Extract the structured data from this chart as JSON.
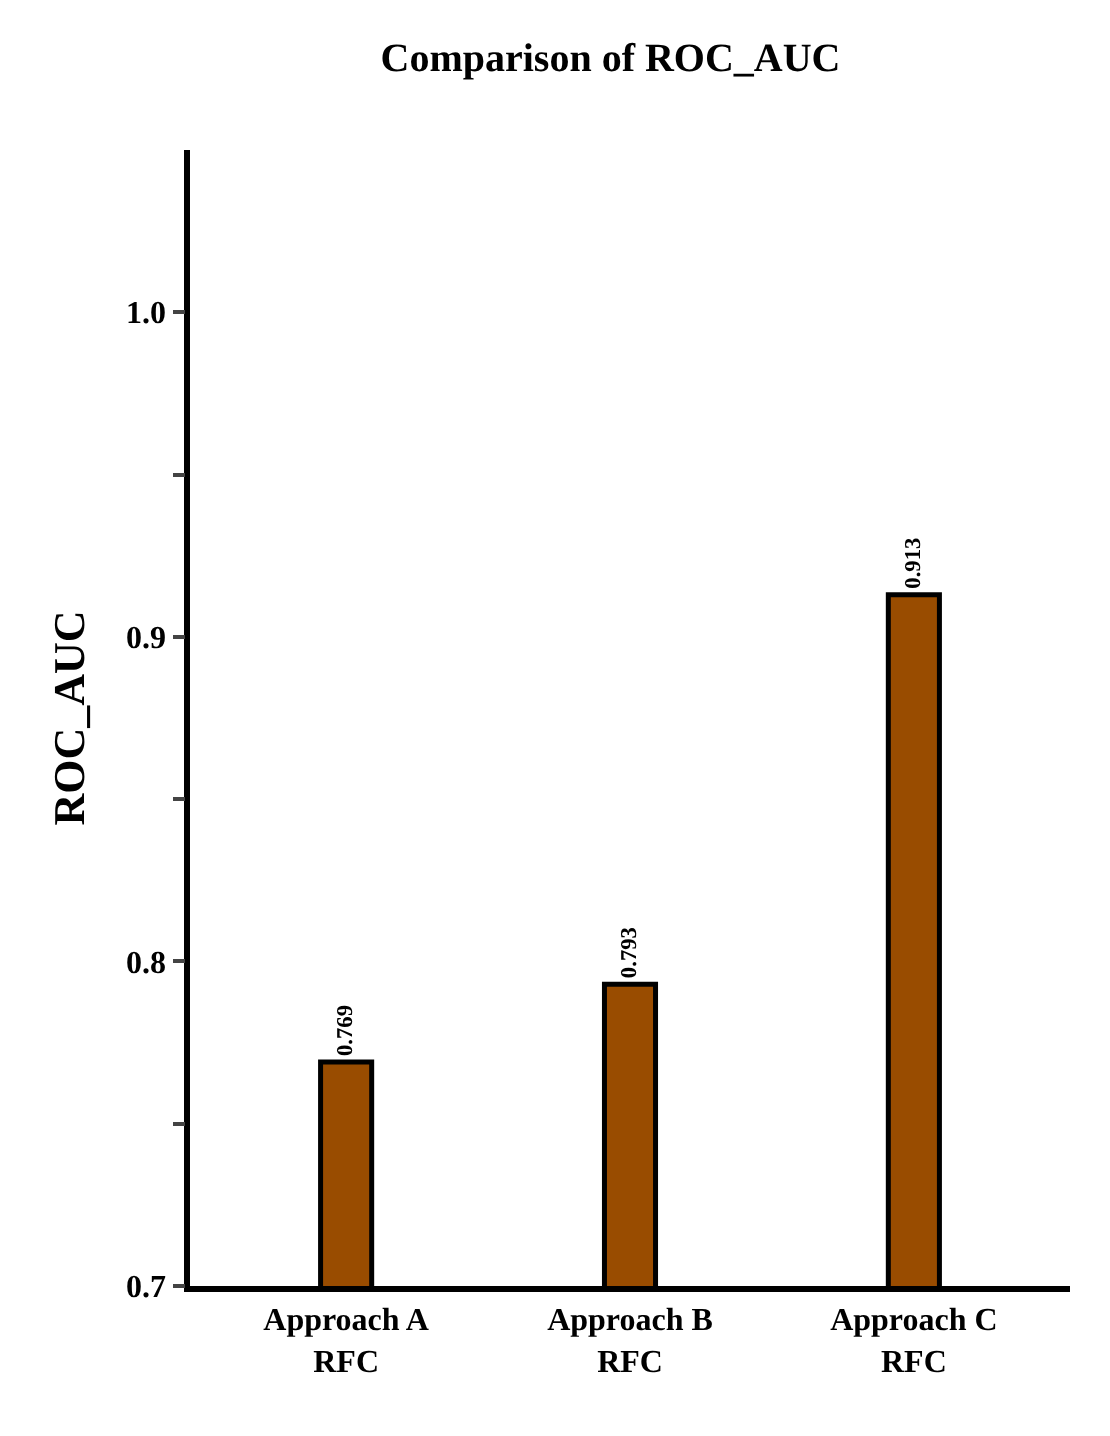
{
  "chart_data": {
    "type": "bar",
    "title": "Comparison of ROC_AUC",
    "ylabel": "ROC_AUC",
    "categories": [
      "Approach A\nRFC",
      "Approach B\nRFC",
      "Approach C\nRFC"
    ],
    "values": [
      0.769,
      0.793,
      0.913
    ],
    "color": "#994c00",
    "ylim": [
      0.7,
      1.05
    ],
    "yticks": [
      0.7,
      {
        "value": 0.75,
        "label": null
      },
      0.8,
      {
        "value": 0.85,
        "label": null
      },
      0.9,
      {
        "value": 0.95,
        "label": null
      },
      {
        "value": 1.0,
        "label": "1.0"
      }
    ],
    "data_labels": true
  }
}
